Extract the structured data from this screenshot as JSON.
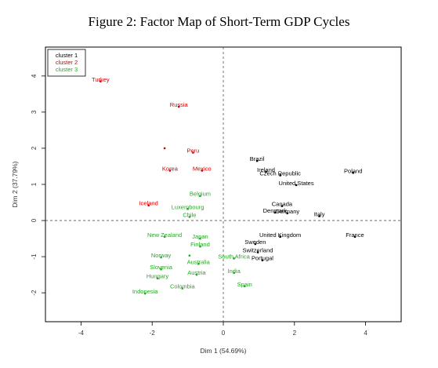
{
  "page": {
    "title": "Figure 2: Factor Map of Short-Term GDP Cycles"
  },
  "chart_data": {
    "type": "scatter",
    "title": "Figure 2: Factor Map of Short-Term GDP Cycles",
    "xlabel": "Dim 1 (54.69%)",
    "ylabel": "Dim 2 (37.79%)",
    "xlim": [
      -5,
      5
    ],
    "ylim": [
      -2.8,
      4.8
    ],
    "xticks": [
      -4,
      -2,
      0,
      2,
      4
    ],
    "yticks": [
      -2,
      -1,
      0,
      1,
      2,
      3,
      4
    ],
    "reference_lines": {
      "x": 0,
      "y": 0,
      "style": "dashed"
    },
    "grid": false,
    "legend_position": "top-left",
    "colors": {
      "cluster 1": "#000000",
      "cluster 2": "#cc0000",
      "cluster 3": "#22aa22",
      "frame": "#000000",
      "axis_text": "#333333"
    },
    "legend": [
      {
        "label": "cluster 1",
        "cluster": "cluster 1"
      },
      {
        "label": "cluster 2",
        "cluster": "cluster 2"
      },
      {
        "label": "cluster 3",
        "cluster": "cluster 3"
      }
    ],
    "series": [
      {
        "name": "cluster 1",
        "points": [
          {
            "label": "Brazil",
            "x": 0.95,
            "y": 1.65
          },
          {
            "label": "Ireland",
            "x": 1.2,
            "y": 1.35
          },
          {
            "label": "Czech Republic",
            "x": 1.6,
            "y": 1.25
          },
          {
            "label": "United States",
            "x": 2.05,
            "y": 0.98
          },
          {
            "label": "Poland",
            "x": 3.65,
            "y": 1.32
          },
          {
            "label": "Canada",
            "x": 1.65,
            "y": 0.4
          },
          {
            "label": "Denmark",
            "x": 1.45,
            "y": 0.22
          },
          {
            "label": "Germany",
            "x": 1.8,
            "y": 0.2
          },
          {
            "label": "Italy",
            "x": 2.7,
            "y": 0.12
          },
          {
            "label": "United Kingdom",
            "x": 1.6,
            "y": -0.45
          },
          {
            "label": "France",
            "x": 3.7,
            "y": -0.45
          },
          {
            "label": "Sweden",
            "x": 0.9,
            "y": -0.65
          },
          {
            "label": "Switzerland",
            "x": 0.97,
            "y": -0.88
          },
          {
            "label": "Portugal",
            "x": 1.1,
            "y": -1.1
          }
        ]
      },
      {
        "name": "cluster 2",
        "points": [
          {
            "label": "Turkey",
            "x": -3.45,
            "y": 3.85
          },
          {
            "label": "Russia",
            "x": -1.25,
            "y": 3.15
          },
          {
            "label": "",
            "x": -1.65,
            "y": 2.0
          },
          {
            "label": "Peru",
            "x": -0.85,
            "y": 1.88
          },
          {
            "label": "Korea",
            "x": -1.5,
            "y": 1.38
          },
          {
            "label": "Mexico",
            "x": -0.6,
            "y": 1.38
          },
          {
            "label": "Iceland",
            "x": -2.1,
            "y": 0.42
          }
        ]
      },
      {
        "name": "cluster 3",
        "points": [
          {
            "label": "Belgium",
            "x": -0.65,
            "y": 0.68
          },
          {
            "label": "Luxembourg",
            "x": -1.0,
            "y": 0.32
          },
          {
            "label": "Chile",
            "x": -0.95,
            "y": 0.1
          },
          {
            "label": "New Zealand",
            "x": -1.65,
            "y": -0.45
          },
          {
            "label": "Japan",
            "x": -0.65,
            "y": -0.5
          },
          {
            "label": "Finland",
            "x": -0.65,
            "y": -0.72
          },
          {
            "label": "",
            "x": -0.95,
            "y": -0.97
          },
          {
            "label": "Norway",
            "x": -1.75,
            "y": -1.02
          },
          {
            "label": "Australia",
            "x": -0.7,
            "y": -1.2
          },
          {
            "label": "South Africa",
            "x": 0.3,
            "y": -1.05
          },
          {
            "label": "Slovenia",
            "x": -1.75,
            "y": -1.35
          },
          {
            "label": "Austria",
            "x": -0.75,
            "y": -1.5
          },
          {
            "label": "India",
            "x": 0.3,
            "y": -1.45
          },
          {
            "label": "Hungary",
            "x": -1.85,
            "y": -1.6
          },
          {
            "label": "Colombia",
            "x": -1.15,
            "y": -1.88
          },
          {
            "label": "Spain",
            "x": 0.6,
            "y": -1.82
          },
          {
            "label": "Indonesia",
            "x": -2.2,
            "y": -2.02
          }
        ]
      }
    ]
  }
}
